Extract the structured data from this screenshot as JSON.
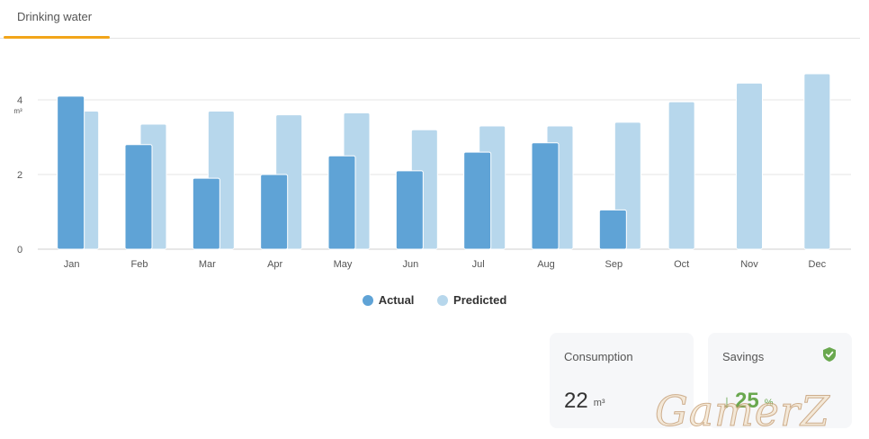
{
  "tab": {
    "label": "Drinking water"
  },
  "chart_data": {
    "type": "bar",
    "categories": [
      "Jan",
      "Feb",
      "Mar",
      "Apr",
      "May",
      "Jun",
      "Jul",
      "Aug",
      "Sep",
      "Oct",
      "Nov",
      "Dec"
    ],
    "series": [
      {
        "name": "Actual",
        "values": [
          4.1,
          2.8,
          1.9,
          2.0,
          2.5,
          2.1,
          2.6,
          2.85,
          1.05,
          null,
          null,
          null
        ],
        "color": "#5fa3d6"
      },
      {
        "name": "Predicted",
        "values": [
          3.7,
          3.35,
          3.7,
          3.6,
          3.65,
          3.2,
          3.3,
          3.3,
          3.4,
          3.95,
          4.45,
          4.7
        ],
        "color": "#b7d7ec"
      }
    ],
    "yticks": [
      0,
      2,
      4
    ],
    "ylabel": "m³",
    "ylim": [
      0,
      4.8
    ],
    "grid": true,
    "legend_position": "bottom"
  },
  "cards": {
    "consumption": {
      "title": "Consumption",
      "value": "22",
      "unit": "m³"
    },
    "savings": {
      "title": "Savings",
      "arrow": "↓",
      "value": "25",
      "unit": "%",
      "icon": "shield-check-icon",
      "icon_color": "#6aa84f"
    }
  },
  "watermark": "GamerZ"
}
